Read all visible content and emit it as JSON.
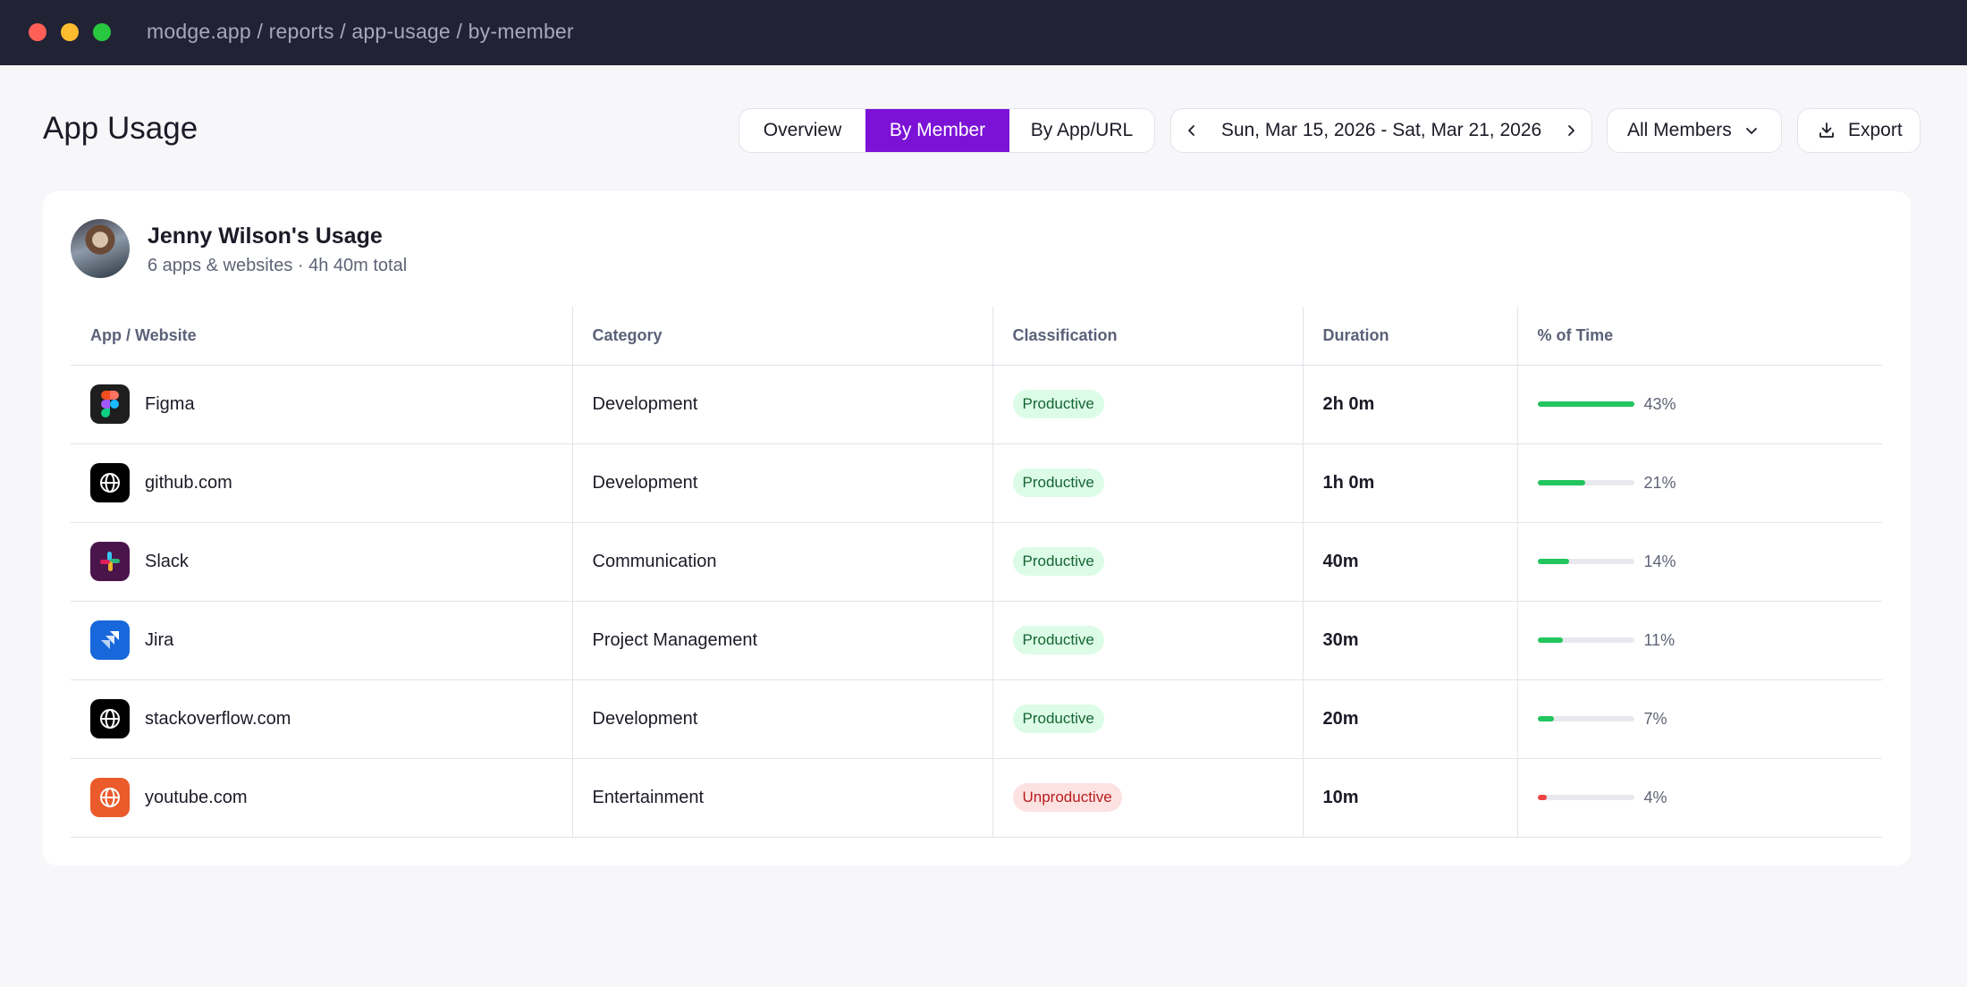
{
  "window": {
    "url": "modge.app / reports / app-usage / by-member"
  },
  "header": {
    "title": "App Usage",
    "views": [
      "Overview",
      "By Member",
      "By App/URL"
    ],
    "active_view": "By Member",
    "date_range": "Sun, Mar 15, 2026 - Sat, Mar 21, 2026",
    "members_filter": "All Members",
    "export_label": "Export"
  },
  "card": {
    "user_name": "Jenny Wilson's Usage",
    "user_subtitle": "6 apps & websites · 4h 40m total"
  },
  "table": {
    "columns": [
      "App / Website",
      "Category",
      "Classification",
      "Duration",
      "% of Time"
    ],
    "rows": [
      {
        "app": "Figma",
        "icon": "figma-icon",
        "category": "Development",
        "classification": "Productive",
        "duration": "2h 0m",
        "percent": 43,
        "percent_label": "43%"
      },
      {
        "app": "github.com",
        "icon": "globe-icon",
        "category": "Development",
        "classification": "Productive",
        "duration": "1h 0m",
        "percent": 21,
        "percent_label": "21%"
      },
      {
        "app": "Slack",
        "icon": "slack-icon",
        "category": "Communication",
        "classification": "Productive",
        "duration": "40m",
        "percent": 14,
        "percent_label": "14%"
      },
      {
        "app": "Jira",
        "icon": "jira-icon",
        "category": "Project Management",
        "classification": "Productive",
        "duration": "30m",
        "percent": 11,
        "percent_label": "11%"
      },
      {
        "app": "stackoverflow.com",
        "icon": "globe-icon",
        "category": "Development",
        "classification": "Productive",
        "duration": "20m",
        "percent": 7,
        "percent_label": "7%"
      },
      {
        "app": "youtube.com",
        "icon": "globe-icon",
        "category": "Entertainment",
        "classification": "Unproductive",
        "duration": "10m",
        "percent": 4,
        "percent_label": "4%"
      }
    ]
  },
  "colors": {
    "accent": "#7b12d6",
    "productive": "#22c55e",
    "unproductive": "#ef4444",
    "titlebar": "#222235"
  }
}
